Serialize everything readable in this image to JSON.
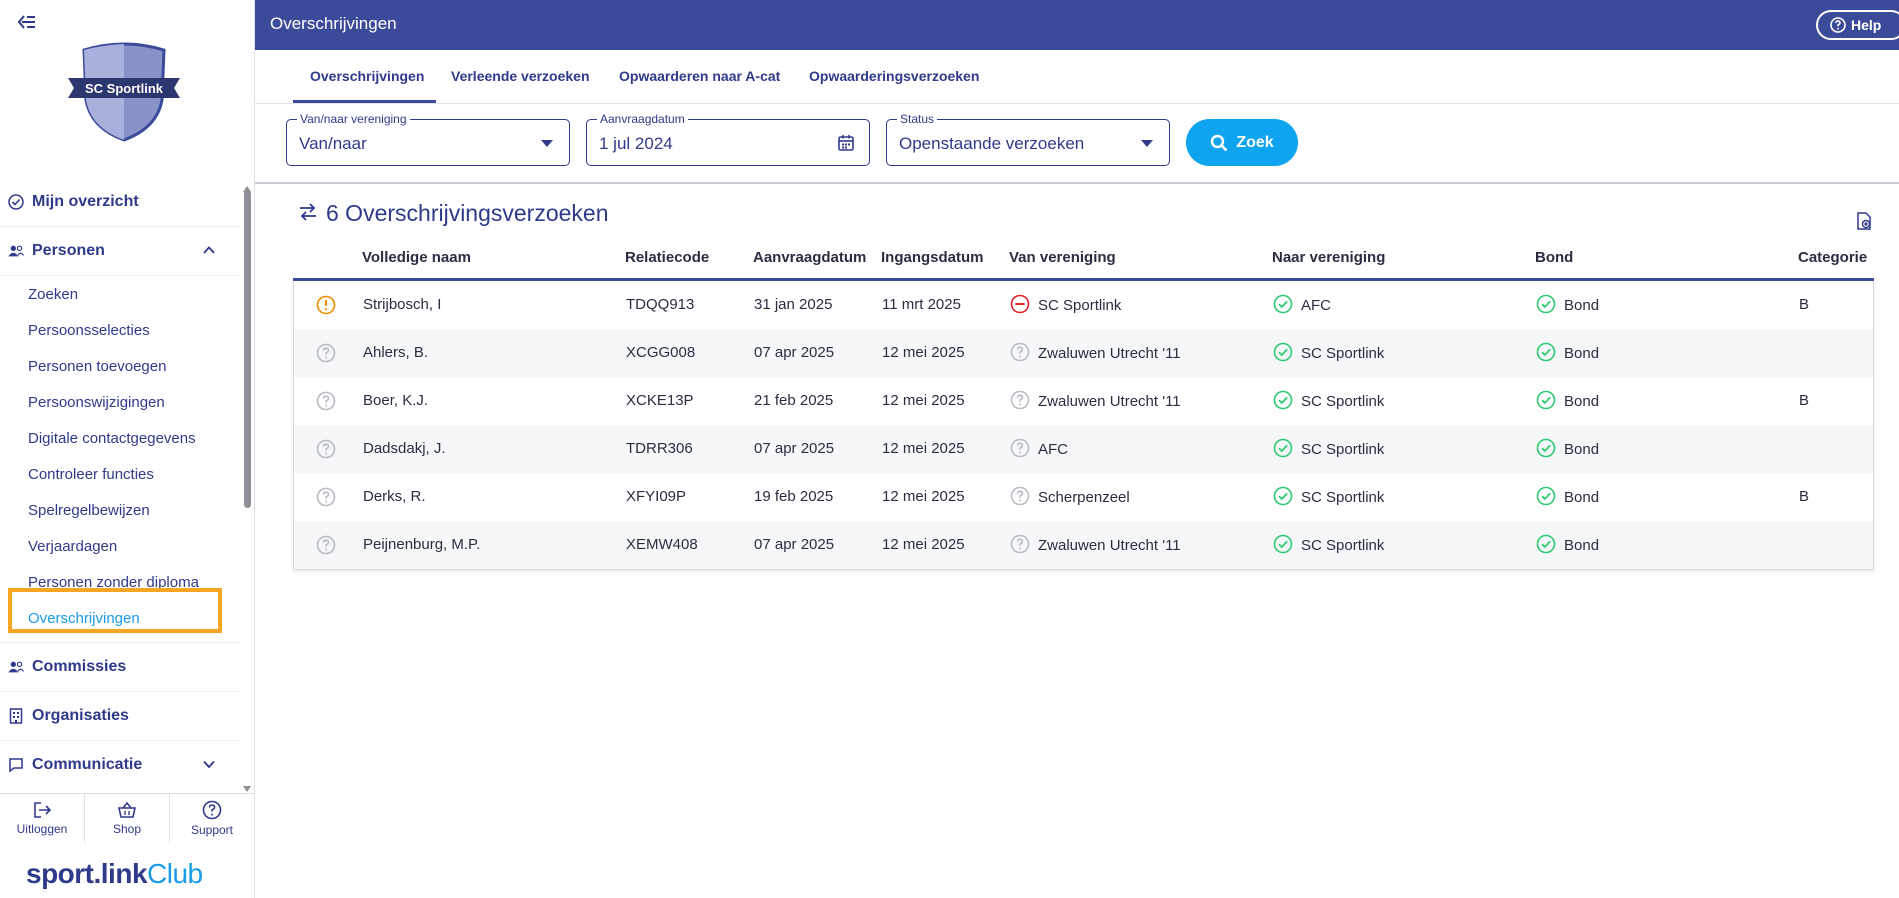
{
  "window": {
    "title": "Overschrijvingen"
  },
  "header": {
    "help_label": "Help"
  },
  "sidebar": {
    "logo_text": "SC Sportlink",
    "items": [
      {
        "label": "Mijn overzicht",
        "icon": "check-circle-icon"
      },
      {
        "label": "Personen",
        "icon": "users-icon",
        "expanded": true
      },
      {
        "label": "Commissies",
        "icon": "users-icon"
      },
      {
        "label": "Organisaties",
        "icon": "building-icon"
      },
      {
        "label": "Communicatie",
        "icon": "chat-icon",
        "expanded": false
      }
    ],
    "sub_items": [
      "Zoeken",
      "Persoonsselecties",
      "Personen toevoegen",
      "Persoonswijzigingen",
      "Digitale contactgegevens",
      "Controleer functies",
      "Spelregelbewijzen",
      "Verjaardagen",
      "Personen zonder diploma",
      "Overschrijvingen"
    ],
    "active_sub_item": "Overschrijvingen",
    "bottom_actions": [
      {
        "label": "Uitloggen",
        "icon": "logout-icon"
      },
      {
        "label": "Shop",
        "icon": "basket-icon"
      },
      {
        "label": "Support",
        "icon": "help-circle-icon"
      }
    ],
    "brand": {
      "sport": "sport.link",
      "club": "Club"
    }
  },
  "tabs": [
    "Overschrijvingen",
    "Verleende verzoeken",
    "Opwaarderen naar A-cat",
    "Opwaarderingsverzoeken"
  ],
  "filters": {
    "club": {
      "label": "Van/naar vereniging",
      "value": "Van/naar"
    },
    "date": {
      "label": "Aanvraagdatum",
      "value": "1 jul 2024"
    },
    "status": {
      "label": "Status",
      "value": "Openstaande verzoeken"
    },
    "search_label": "Zoek"
  },
  "list": {
    "title": "6 Overschrijvingsverzoeken",
    "columns": [
      "Volledige naam",
      "Relatiecode",
      "Aanvraagdatum",
      "Ingangsdatum",
      "Van vereniging",
      "Naar vereniging",
      "Bond",
      "Categorie"
    ],
    "rows": [
      {
        "status": "warning",
        "name": "Strijbosch, I",
        "code": "TDQQ913",
        "requested": "31 jan 2025",
        "effective": "11 mrt 2025",
        "from_status": "denied",
        "from": "SC Sportlink",
        "to_status": "approved",
        "to": "AFC",
        "bond_status": "approved",
        "bond": "Bond",
        "category": "B"
      },
      {
        "status": "unknown",
        "name": "Ahlers, B.",
        "code": "XCGG008",
        "requested": "07 apr 2025",
        "effective": "12 mei 2025",
        "from_status": "unknown",
        "from": "Zwaluwen Utrecht '11",
        "to_status": "approved",
        "to": "SC Sportlink",
        "bond_status": "approved",
        "bond": "Bond",
        "category": ""
      },
      {
        "status": "unknown",
        "name": "Boer, K.J.",
        "code": "XCKE13P",
        "requested": "21 feb 2025",
        "effective": "12 mei 2025",
        "from_status": "unknown",
        "from": "Zwaluwen Utrecht '11",
        "to_status": "approved",
        "to": "SC Sportlink",
        "bond_status": "approved",
        "bond": "Bond",
        "category": "B"
      },
      {
        "status": "unknown",
        "name": "Dadsdakj, J.",
        "code": "TDRR306",
        "requested": "07 apr 2025",
        "effective": "12 mei 2025",
        "from_status": "unknown",
        "from": "AFC",
        "to_status": "approved",
        "to": "SC Sportlink",
        "bond_status": "approved",
        "bond": "Bond",
        "category": ""
      },
      {
        "status": "unknown",
        "name": "Derks, R.",
        "code": "XFYI09P",
        "requested": "19 feb 2025",
        "effective": "12 mei 2025",
        "from_status": "unknown",
        "from": "Scherpenzeel",
        "to_status": "approved",
        "to": "SC Sportlink",
        "bond_status": "approved",
        "bond": "Bond",
        "category": "B"
      },
      {
        "status": "unknown",
        "name": "Peijnenburg, M.P.",
        "code": "XEMW408",
        "requested": "07 apr 2025",
        "effective": "12 mei 2025",
        "from_status": "unknown",
        "from": "Zwaluwen Utrecht '11",
        "to_status": "approved",
        "to": "SC Sportlink",
        "bond_status": "approved",
        "bond": "Bond",
        "category": ""
      }
    ]
  },
  "colors": {
    "primary": "#3c4a9a",
    "accent": "#0ea4ef",
    "approved": "#2ecc71",
    "denied": "#e02424",
    "warning": "#f08c00",
    "unknown": "#b9bbc4",
    "highlight": "#f6a623"
  }
}
